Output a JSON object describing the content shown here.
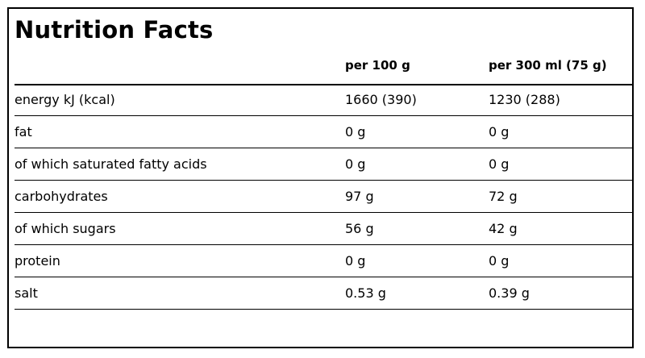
{
  "title": "Nutrition Facts",
  "columns": {
    "per_100g": "per 100 g",
    "per_300ml": "per 300 ml (75 g)"
  },
  "rows": [
    {
      "name": "energy kJ (kcal)",
      "per_100g": "1660 (390)",
      "per_300ml": "1230 (288)"
    },
    {
      "name": "fat",
      "per_100g": "0 g",
      "per_300ml": "0 g"
    },
    {
      "name": "of which saturated fatty acids",
      "per_100g": "0 g",
      "per_300ml": "0 g"
    },
    {
      "name": "carbohydrates",
      "per_100g": "97 g",
      "per_300ml": "72 g"
    },
    {
      "name": "of which sugars",
      "per_100g": "56 g",
      "per_300ml": "42 g"
    },
    {
      "name": "protein",
      "per_100g": "0 g",
      "per_300ml": "0 g"
    },
    {
      "name": "salt",
      "per_100g": "0.53 g",
      "per_300ml": "0.39 g"
    }
  ]
}
